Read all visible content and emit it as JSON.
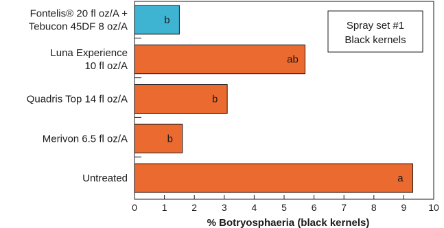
{
  "chart_data": {
    "type": "bar",
    "orientation": "horizontal",
    "categories": [
      [
        "Fontelis® 20 fl oz/A +",
        "Tebucon 45DF 8 oz/A"
      ],
      [
        "Luna Experience",
        "10 fl oz/A"
      ],
      [
        "Quadris Top 14 fl oz/A"
      ],
      [
        "Merivon 6.5 fl oz/A"
      ],
      [
        "Untreated"
      ]
    ],
    "values": [
      1.5,
      5.7,
      3.1,
      1.6,
      9.3
    ],
    "bar_labels": [
      "b",
      "ab",
      "b",
      "b",
      "a"
    ],
    "bar_colors": [
      "#3fb3d2",
      "#eb6a2f",
      "#eb6a2f",
      "#eb6a2f",
      "#eb6a2f"
    ],
    "xlabel": "% Botryosphaeria (black kernels)",
    "ylabel": "",
    "xlim": [
      0,
      10
    ],
    "xticks": [
      "0",
      "1",
      "2",
      "3",
      "4",
      "5",
      "6",
      "7",
      "8",
      "9",
      "10"
    ],
    "grid": false,
    "legend_box": {
      "lines": [
        "Spray set #1",
        "Black kernels"
      ],
      "placement": "top-right"
    }
  }
}
